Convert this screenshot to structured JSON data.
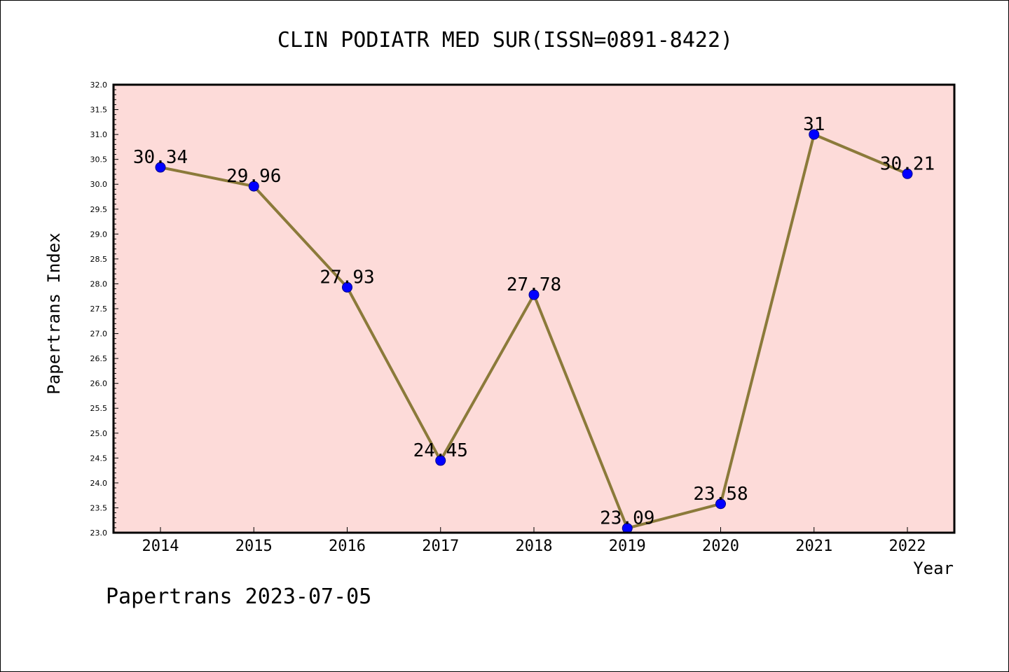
{
  "chart_data": {
    "type": "line",
    "title": "CLIN PODIATR MED SUR(ISSN=0891-8422)",
    "xlabel": "Year",
    "ylabel": "Papertrans Index",
    "ylim": [
      23.0,
      32.0
    ],
    "y_ticks": [
      "23.0",
      "23.5",
      "24.0",
      "24.5",
      "25.0",
      "25.5",
      "26.0",
      "26.5",
      "27.0",
      "27.5",
      "28.0",
      "28.5",
      "29.0",
      "29.5",
      "30.0",
      "30.5",
      "31.0",
      "31.5",
      "32.0"
    ],
    "categories": [
      "2014",
      "2015",
      "2016",
      "2017",
      "2018",
      "2019",
      "2020",
      "2021",
      "2022"
    ],
    "values": [
      30.34,
      29.96,
      27.93,
      24.45,
      27.78,
      23.09,
      23.58,
      31,
      30.21
    ],
    "value_labels": [
      "30.34",
      "29.96",
      "27.93",
      "24.45",
      "27.78",
      "23.09",
      "23.58",
      "31",
      "30.21"
    ],
    "grid": false,
    "colors": {
      "plot_background": "#fddbd9",
      "line": "#8b7a3a",
      "marker": "#0000ff",
      "frame": "#000000"
    }
  },
  "footer": {
    "watermark": "Papertrans 2023-07-05"
  }
}
